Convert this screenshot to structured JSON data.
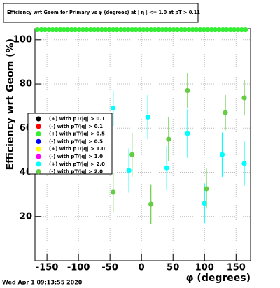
{
  "chart_data": {
    "type": "scatter",
    "title": "Efficiency wrt Geom for Primary vs φ (degrees) at | η | <= 1.0 at pT > 0.11",
    "x_label": "φ (degrees)",
    "y_label": "Efficiency wrt Geom (%)",
    "footer": "Wed Apr  1 09:13:55 2020",
    "xlim": [
      -169,
      173
    ],
    "ylim": [
      0,
      105
    ],
    "xticks": [
      -150,
      -100,
      -50,
      0,
      50,
      100,
      150
    ],
    "yticks": [
      20,
      40,
      60,
      80,
      100
    ],
    "grid": true,
    "series": [
      {
        "name": "(+) with pT/|q| > 0.1",
        "color": "#000000",
        "x": [],
        "values": []
      },
      {
        "name": "(-) with pT/|q| > 0.1",
        "color": "#ff0000",
        "x": [],
        "values": []
      },
      {
        "name": "(+) with pT/|q| > 0.5",
        "color": "#33ee33",
        "x": [
          -165,
          -159,
          -153,
          -147,
          -141,
          -135,
          -129,
          -123,
          -117,
          -111,
          -105,
          -99,
          -93,
          -87,
          -81,
          -75,
          -69,
          -63,
          -57,
          -51,
          -45,
          -39,
          -33,
          -27,
          -21,
          -15,
          -9,
          -3,
          3,
          9,
          15,
          21,
          27,
          33,
          39,
          45,
          51,
          57,
          63,
          69,
          75,
          81,
          87,
          93,
          99,
          105,
          111,
          117,
          123,
          129,
          135,
          141,
          147,
          153,
          159,
          165
        ],
        "values": [
          104.5,
          104.5,
          104.5,
          104.5,
          104.5,
          104.5,
          104.5,
          104.5,
          104.5,
          104.5,
          104.5,
          104.5,
          104.5,
          104.5,
          104.5,
          104.5,
          104.5,
          104.5,
          104.5,
          104.5,
          104.5,
          104.5,
          104.5,
          104.5,
          104.5,
          104.5,
          104.5,
          104.5,
          104.5,
          104.5,
          104.5,
          104.5,
          104.5,
          104.5,
          104.5,
          104.5,
          104.5,
          104.5,
          104.5,
          104.5,
          104.5,
          104.5,
          104.5,
          104.5,
          104.5,
          104.5,
          104.5,
          104.5,
          104.5,
          104.5,
          104.5,
          104.5,
          104.5,
          104.5,
          104.5,
          104.5
        ]
      },
      {
        "name": "(-) with pT/|q| > 0.5",
        "color": "#0000ff",
        "x": [],
        "values": []
      },
      {
        "name": "(+) with pT/|q| > 1.0",
        "color": "#ffff00",
        "x": [],
        "values": []
      },
      {
        "name": "(-) with pT/|q| > 1.0",
        "color": "#ff00ff",
        "x": [],
        "values": []
      },
      {
        "name": "(+) with pT/|q| > 2.0",
        "color": "#00ffff",
        "x": [
          -45,
          -20,
          10,
          40,
          73,
          100,
          128,
          163
        ],
        "values": [
          69,
          40.8,
          65,
          42,
          57.6,
          26,
          48,
          44
        ],
        "errors": [
          8,
          10,
          10,
          10,
          11,
          9,
          10,
          10
        ]
      },
      {
        "name": "(-) with pT/|q| > 2.0",
        "color": "#66cc44",
        "x": [
          -45,
          -15,
          15,
          43,
          73,
          103,
          133,
          163
        ],
        "values": [
          31,
          48,
          25.6,
          55,
          77,
          32.6,
          67,
          73.7
        ],
        "errors": [
          9,
          10,
          9,
          10,
          8,
          9,
          8,
          8
        ]
      }
    ]
  }
}
